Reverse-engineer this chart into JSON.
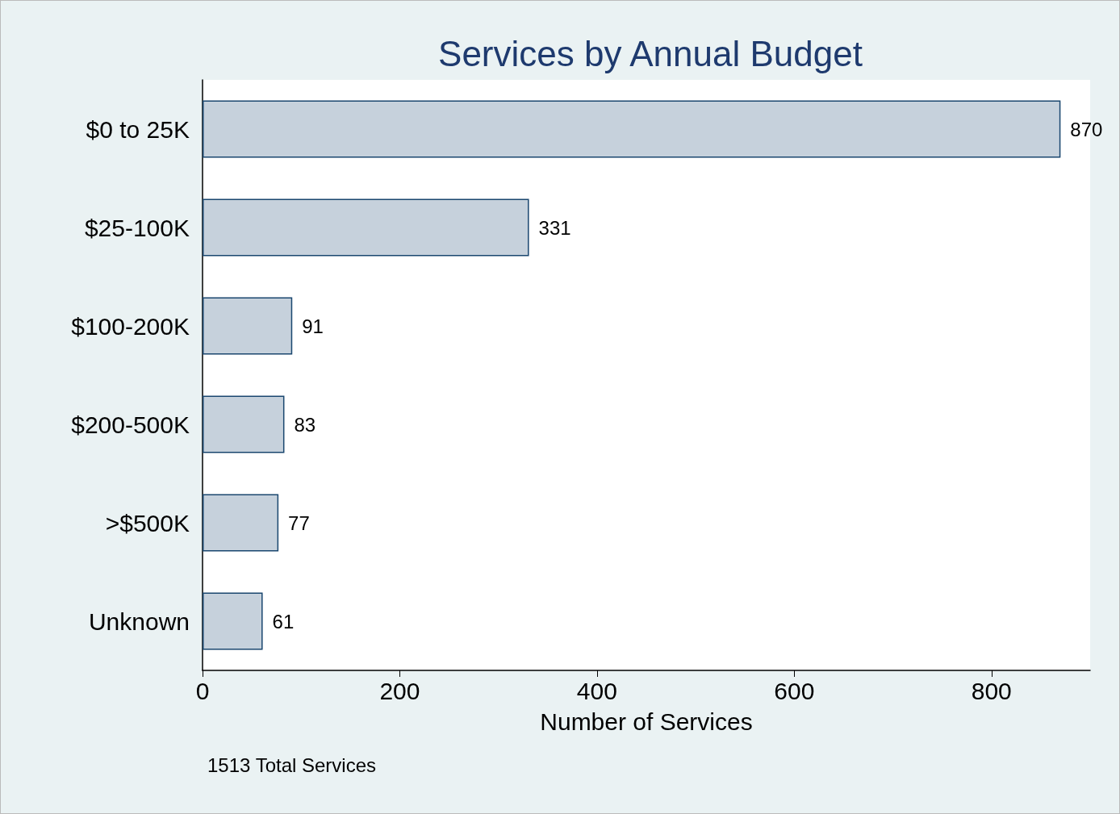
{
  "chart_data": {
    "type": "bar",
    "orientation": "horizontal",
    "title": "Services by Annual Budget",
    "xlabel": "Number of Services",
    "categories": [
      "$0 to 25K",
      "$25-100K",
      "$100-200K",
      "$200-500K",
      ">$500K",
      "Unknown"
    ],
    "values": [
      870,
      331,
      91,
      83,
      77,
      61
    ],
    "color": "#c6d1dc",
    "xlim": [
      0,
      900
    ],
    "xticks": [
      0,
      200,
      400,
      600,
      800
    ],
    "grid": false,
    "data_labels": true,
    "annotations": [
      "1513 Total Services"
    ]
  }
}
